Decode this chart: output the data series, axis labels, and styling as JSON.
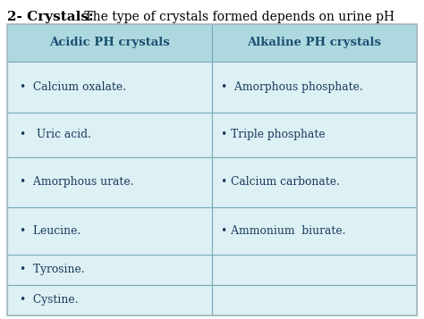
{
  "title_bold": "2- Crystals:",
  "title_normal": " The type of crystals formed depends on urine pH",
  "col1_header": "Acidic PH crystals",
  "col2_header": "Alkaline PH crystals",
  "col1_items": [
    "•  Calcium oxalate.",
    "•   Uric acid.",
    "•  Amorphous urate.",
    "•  Leucine.",
    "•  Tyrosine.",
    "•  Cystine."
  ],
  "col2_items": [
    "•  Amorphous phosphate.",
    "• Triple phosphate",
    "• Calcium carbonate.",
    "• Ammonium  biurate.",
    "",
    ""
  ],
  "header_bg": "#aed8e0",
  "row_bg": "#ddf0f4",
  "border_color": "#7aabba",
  "outer_border_color": "#aabbc0",
  "header_text_color": "#1a5070",
  "body_text_color": "#1a3a5c",
  "title_color": "#000000",
  "fig_bg": "#ffffff"
}
